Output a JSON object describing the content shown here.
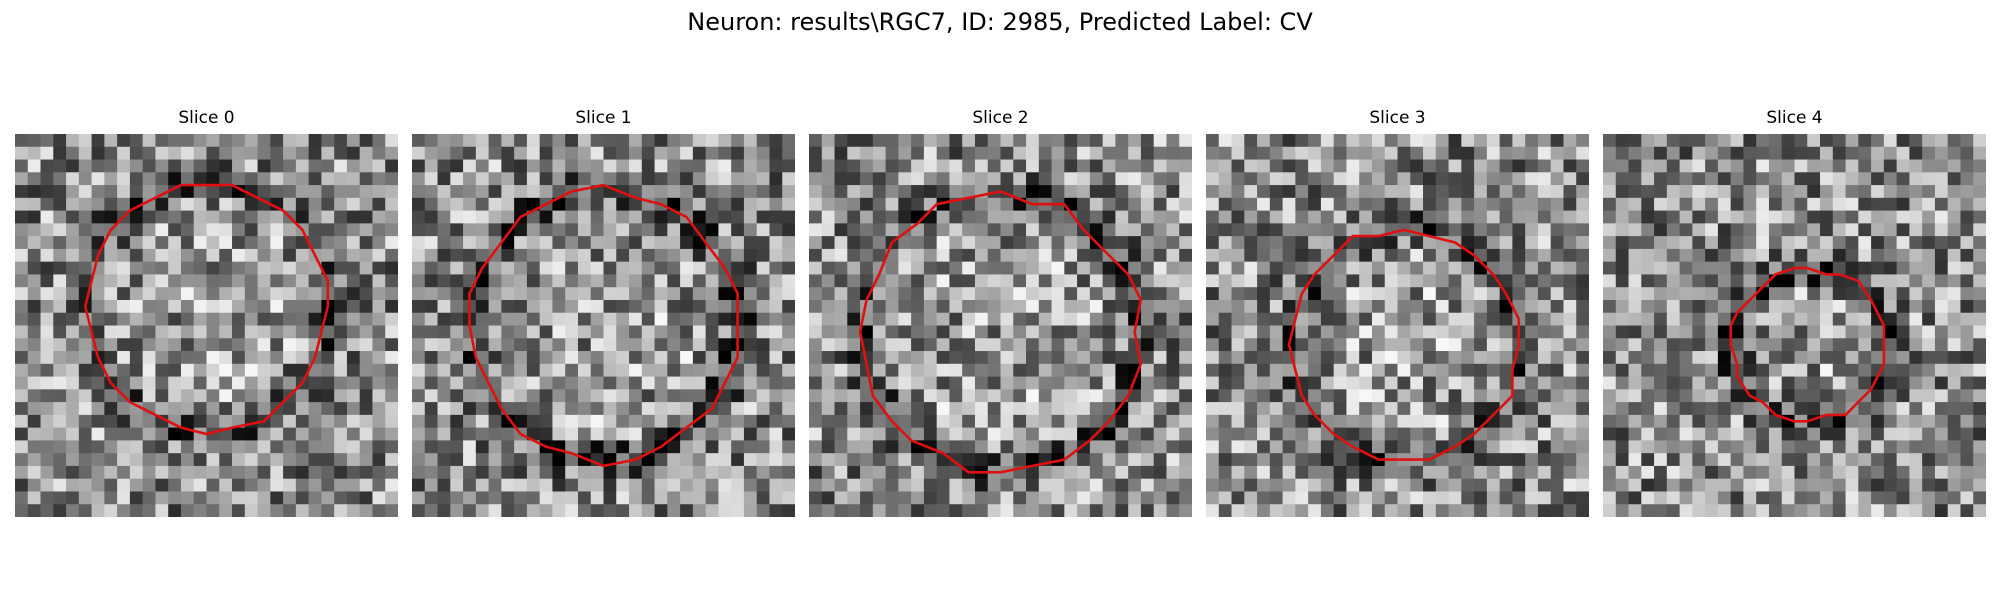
{
  "figure": {
    "title": "Neuron: results\\RGC7, ID: 2985, Predicted Label: CV"
  },
  "panels": [
    {
      "title": "Slice 0",
      "seed": 11,
      "contour_color": "#e01010",
      "outline_radius_fraction": 0.32,
      "outline_center": [
        0.5,
        0.45
      ]
    },
    {
      "title": "Slice 1",
      "seed": 23,
      "contour_color": "#e01010",
      "outline_radius_fraction": 0.35,
      "outline_center": [
        0.5,
        0.5
      ]
    },
    {
      "title": "Slice 2",
      "seed": 37,
      "contour_color": "#e01010",
      "outline_radius_fraction": 0.36,
      "outline_center": [
        0.5,
        0.52
      ]
    },
    {
      "title": "Slice 3",
      "seed": 41,
      "contour_color": "#e01010",
      "outline_radius_fraction": 0.3,
      "outline_center": [
        0.52,
        0.55
      ]
    },
    {
      "title": "Slice 4",
      "seed": 53,
      "contour_color": "#e01010",
      "outline_radius_fraction": 0.2,
      "outline_center": [
        0.54,
        0.55
      ]
    }
  ],
  "image_style": {
    "colormap": "gray",
    "grid_cells": 30
  }
}
